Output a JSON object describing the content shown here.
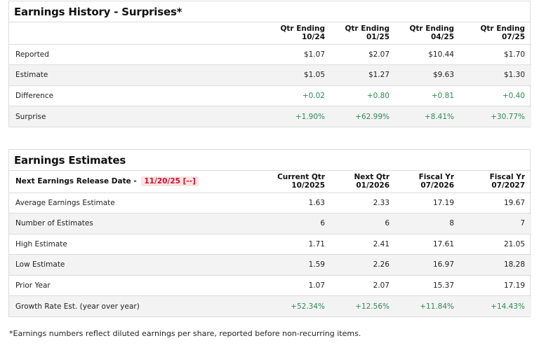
{
  "history": {
    "title": "Earnings History - Surprises*",
    "columns": [
      {
        "line1": "Qtr Ending",
        "line2": "10/24"
      },
      {
        "line1": "Qtr Ending",
        "line2": "01/25"
      },
      {
        "line1": "Qtr Ending",
        "line2": "04/25"
      },
      {
        "line1": "Qtr Ending",
        "line2": "07/25"
      }
    ],
    "rows": [
      {
        "label": "Reported",
        "values": [
          "$1.07",
          "$2.07",
          "$10.44",
          "$1.70"
        ]
      },
      {
        "label": "Estimate",
        "values": [
          "$1.05",
          "$1.27",
          "$9.63",
          "$1.30"
        ]
      },
      {
        "label": "Difference",
        "values": [
          "+0.02",
          "+0.80",
          "+0.81",
          "+0.40"
        ]
      },
      {
        "label": "Surprise",
        "values": [
          "+1.90%",
          "+62.99%",
          "+8.41%",
          "+30.77%"
        ]
      }
    ]
  },
  "estimates": {
    "title": "Earnings Estimates",
    "release_label": "Next Earnings Release Date -",
    "release_date": "11/20/25 [--]",
    "columns": [
      {
        "line1": "Current Qtr",
        "line2": "10/2025"
      },
      {
        "line1": "Next Qtr",
        "line2": "01/2026"
      },
      {
        "line1": "Fiscal Yr",
        "line2": "07/2026"
      },
      {
        "line1": "Fiscal Yr",
        "line2": "07/2027"
      }
    ],
    "rows": [
      {
        "label": "Average Earnings Estimate",
        "values": [
          "1.63",
          "2.33",
          "17.19",
          "19.67"
        ]
      },
      {
        "label": "Number of Estimates",
        "values": [
          "6",
          "6",
          "8",
          "7"
        ]
      },
      {
        "label": "High Estimate",
        "values": [
          "1.71",
          "2.41",
          "17.61",
          "21.05"
        ]
      },
      {
        "label": "Low Estimate",
        "values": [
          "1.59",
          "2.26",
          "16.97",
          "18.28"
        ]
      },
      {
        "label": "Prior Year",
        "values": [
          "1.07",
          "2.07",
          "15.37",
          "17.19"
        ]
      },
      {
        "label": "Growth Rate Est. (year over year)",
        "values": [
          "+52.34%",
          "+12.56%",
          "+11.84%",
          "+14.43%"
        ]
      }
    ]
  },
  "footnote": "*Earnings numbers reflect diluted earnings per share, reported before non-recurring items.",
  "colors": {
    "positive": "#2f8a57",
    "release_date_text": "#c8102e",
    "release_date_bg": "#fde4e4",
    "alt_row_bg": "#f3f3f3",
    "border": "#dcdcdc"
  }
}
